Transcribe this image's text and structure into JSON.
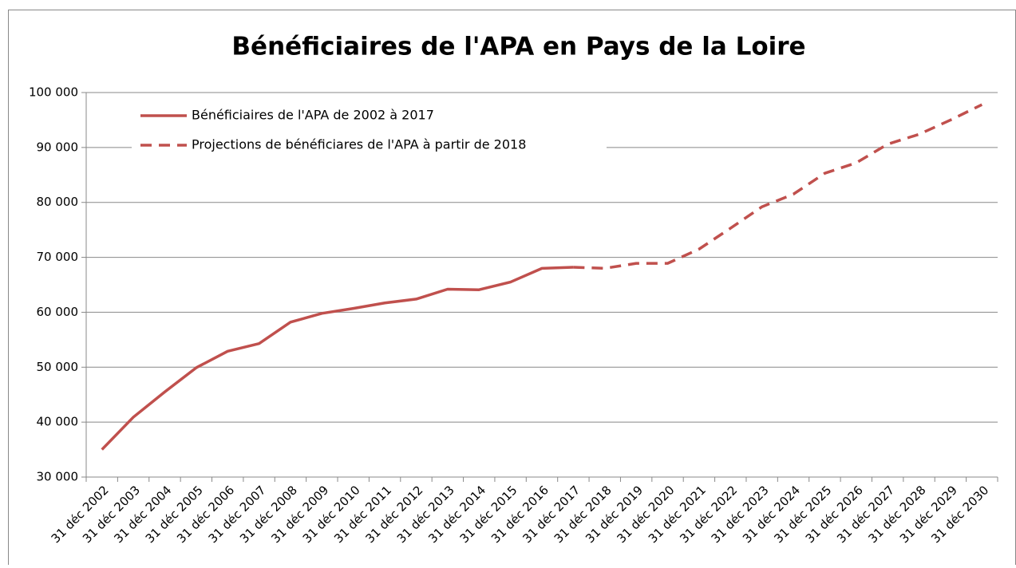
{
  "chart_data": {
    "type": "line",
    "title": "Bénéficiaires de l'APA en Pays de la Loire",
    "categories": [
      "31 déc 2002",
      "31 déc 2003",
      "31 déc 2004",
      "31 déc 2005",
      "31 déc 2006",
      "31 déc 2007",
      "31 déc 2008",
      "31 déc 2009",
      "31 déc 2010",
      "31 déc 2011",
      "31 déc 2012",
      "31 déc 2013",
      "31 déc 2014",
      "31 déc 2015",
      "31 déc 2016",
      "31 déc 2017",
      "31 déc 2018",
      "31 déc 2019",
      "31 déc 2020",
      "31 déc 2021",
      "31 déc 2022",
      "31 déc 2023",
      "31 déc 2024",
      "31 déc 2025",
      "31 déc 2026",
      "31 déc 2027",
      "31 déc 2028",
      "31 déc 2029",
      "31 déc 2030"
    ],
    "series": [
      {
        "name": "Bénéficiaires de l'APA de 2002 à 2017",
        "color": "#c0504d",
        "dashed": false,
        "values": [
          35000,
          40900,
          45500,
          49900,
          52900,
          54300,
          58200,
          59800,
          60700,
          61700,
          62400,
          64200,
          64100,
          65500,
          68000,
          68200,
          null,
          null,
          null,
          null,
          null,
          null,
          null,
          null,
          null,
          null,
          null,
          null,
          null
        ]
      },
      {
        "name": "Projections de bénéficiares de l'APA à partir de 2018",
        "color": "#c0504d",
        "dashed": true,
        "values": [
          null,
          null,
          null,
          null,
          null,
          null,
          null,
          null,
          null,
          null,
          null,
          null,
          null,
          null,
          null,
          68200,
          68000,
          68900,
          68900,
          71500,
          75300,
          79200,
          81500,
          85300,
          87200,
          90600,
          92400,
          95000,
          97800
        ]
      }
    ],
    "ylim": [
      30000,
      100000
    ],
    "yticks": [
      {
        "value": 30000,
        "label": "30 000"
      },
      {
        "value": 40000,
        "label": "40 000"
      },
      {
        "value": 50000,
        "label": "50 000"
      },
      {
        "value": 60000,
        "label": "60 000"
      },
      {
        "value": 70000,
        "label": "70 000"
      },
      {
        "value": 80000,
        "label": "80 000"
      },
      {
        "value": 90000,
        "label": "90 000"
      },
      {
        "value": 100000,
        "label": "100 000"
      }
    ],
    "grid": true,
    "legend": "top-left"
  }
}
